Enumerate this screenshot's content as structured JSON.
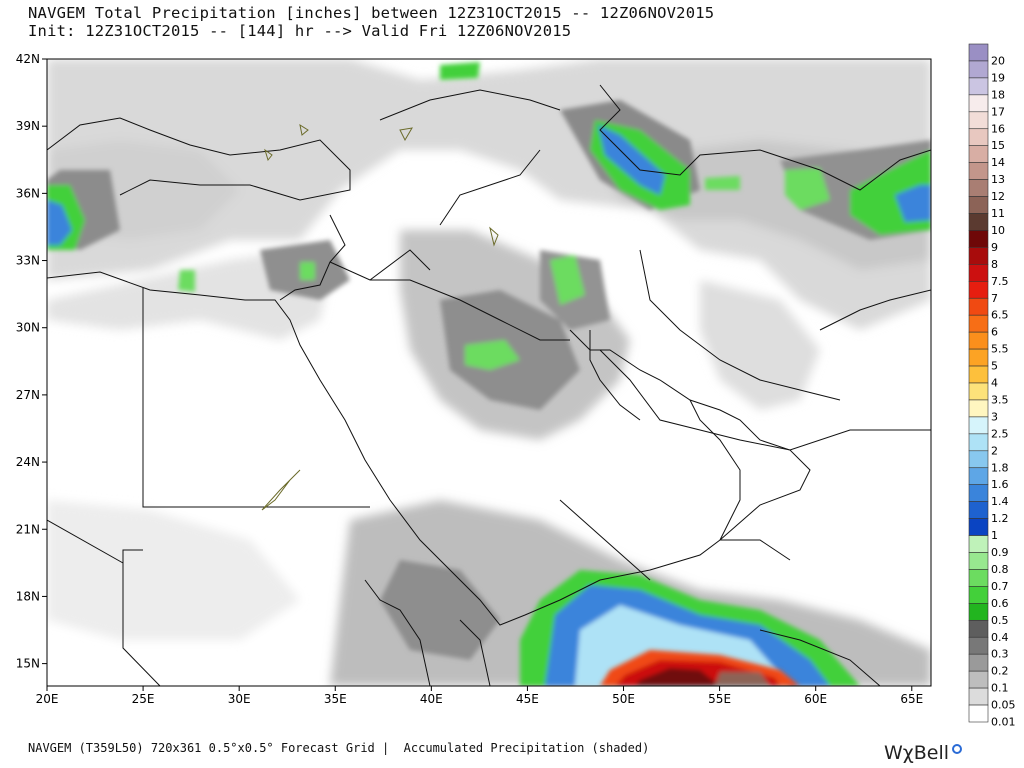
{
  "title": {
    "line1": "NAVGEM Total Precipitation [inches] between 12Z31OCT2015 -- 12Z06NOV2015",
    "line2": "Init: 12Z31OCT2015 -- [144] hr --> Valid Fri 12Z06NOV2015"
  },
  "footer": {
    "text": "NAVGEM (T359L50) 720x361 0.5°x0.5° Forecast Grid |  Accumulated Precipitation (shaded)",
    "brand": "WχBell"
  },
  "map": {
    "lon_range": [
      20,
      66
    ],
    "lat_range": [
      14,
      42
    ],
    "lon_ticks": [
      {
        "value": 20,
        "label": "20E"
      },
      {
        "value": 25,
        "label": "25E"
      },
      {
        "value": 30,
        "label": "30E"
      },
      {
        "value": 35,
        "label": "35E"
      },
      {
        "value": 40,
        "label": "40E"
      },
      {
        "value": 45,
        "label": "45E"
      },
      {
        "value": 50,
        "label": "50E"
      },
      {
        "value": 55,
        "label": "55E"
      },
      {
        "value": 60,
        "label": "60E"
      },
      {
        "value": 65,
        "label": "65E"
      }
    ],
    "lat_ticks": [
      {
        "value": 42,
        "label": "42N"
      },
      {
        "value": 39,
        "label": "39N"
      },
      {
        "value": 36,
        "label": "36N"
      },
      {
        "value": 33,
        "label": "33N"
      },
      {
        "value": 30,
        "label": "30N"
      },
      {
        "value": 27,
        "label": "27N"
      },
      {
        "value": 24,
        "label": "24N"
      },
      {
        "value": 21,
        "label": "21N"
      },
      {
        "value": 18,
        "label": "18N"
      },
      {
        "value": 15,
        "label": "15N"
      }
    ]
  },
  "legend": {
    "levels": [
      {
        "label": "20",
        "color": "#9a8fc4"
      },
      {
        "label": "19",
        "color": "#b1a8d2"
      },
      {
        "label": "18",
        "color": "#cbc5e2"
      },
      {
        "label": "17",
        "color": "#f7ecec"
      },
      {
        "label": "16",
        "color": "#f2ddd8"
      },
      {
        "label": "15",
        "color": "#e8c8c0"
      },
      {
        "label": "14",
        "color": "#d8aea4"
      },
      {
        "label": "13",
        "color": "#c3968b"
      },
      {
        "label": "12",
        "color": "#a97e73"
      },
      {
        "label": "11",
        "color": "#8c6357"
      },
      {
        "label": "10",
        "color": "#5b3a30"
      },
      {
        "label": "9",
        "color": "#6f0808"
      },
      {
        "label": "8",
        "color": "#a80c0c"
      },
      {
        "label": "7.5",
        "color": "#cc1010"
      },
      {
        "label": "7",
        "color": "#e61e10"
      },
      {
        "label": "6.5",
        "color": "#f04a12"
      },
      {
        "label": "6",
        "color": "#f76e16"
      },
      {
        "label": "5.5",
        "color": "#fb8f1c"
      },
      {
        "label": "5",
        "color": "#fca324"
      },
      {
        "label": "4",
        "color": "#fdc03c"
      },
      {
        "label": "3.5",
        "color": "#fde27a"
      },
      {
        "label": "3",
        "color": "#fff6c0"
      },
      {
        "label": "2.5",
        "color": "#d6f4fb"
      },
      {
        "label": "2",
        "color": "#aee2f6"
      },
      {
        "label": "1.8",
        "color": "#88c8ef"
      },
      {
        "label": "1.6",
        "color": "#5ea6e6"
      },
      {
        "label": "1.4",
        "color": "#3a84db"
      },
      {
        "label": "1.2",
        "color": "#1e62cf"
      },
      {
        "label": "1",
        "color": "#0a44c2"
      },
      {
        "label": "0.9",
        "color": "#bff2b9"
      },
      {
        "label": "0.8",
        "color": "#98e88f"
      },
      {
        "label": "0.7",
        "color": "#6cdc60"
      },
      {
        "label": "0.6",
        "color": "#43d03a"
      },
      {
        "label": "0.5",
        "color": "#22b51f"
      },
      {
        "label": "0.4",
        "color": "#5e5e5e"
      },
      {
        "label": "0.3",
        "color": "#787878"
      },
      {
        "label": "0.2",
        "color": "#9a9a9a"
      },
      {
        "label": "0.1",
        "color": "#bdbdbd"
      },
      {
        "label": "0.05",
        "color": "#dcdcdc"
      },
      {
        "label": "0.01",
        "color": "#ffffff"
      }
    ]
  }
}
